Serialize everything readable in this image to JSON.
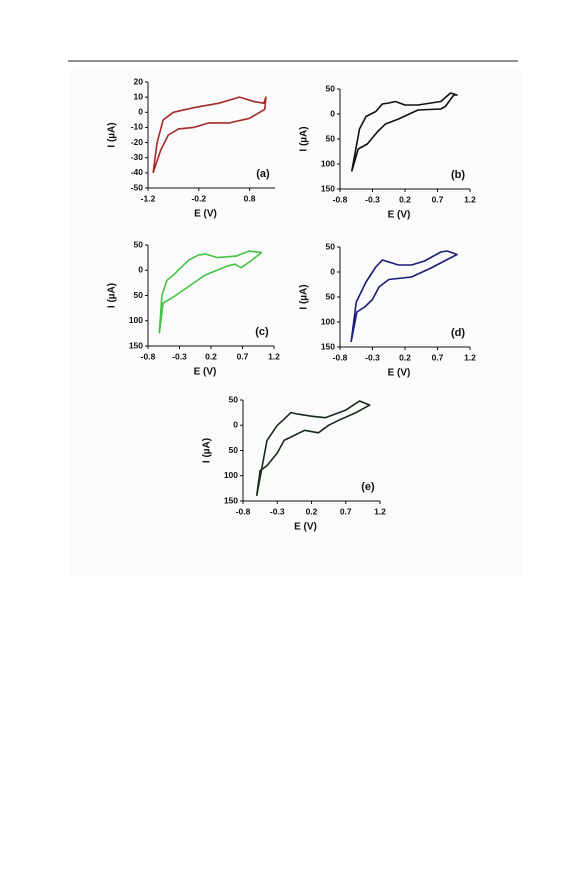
{
  "chart_data": [
    {
      "type": "line",
      "label": "(a)",
      "xlabel": "E (V)",
      "ylabel": "I (µA)",
      "xlim": [
        -1.2,
        1.3
      ],
      "ylim": [
        -50,
        20
      ],
      "xticks": [
        -1.2,
        -0.2,
        0.8
      ],
      "yticks": [
        20,
        10,
        0,
        -10,
        -20,
        -30,
        -40,
        -50
      ],
      "series": [
        {
          "color": "#a52a2a",
          "x": [
            -1.1,
            -1.02,
            -0.9,
            -0.7,
            -0.3,
            0.2,
            0.6,
            0.9,
            1.08,
            1.12,
            1.1,
            0.8,
            0.4,
            0.0,
            -0.3,
            -0.6,
            -0.8,
            -0.95,
            -1.1
          ],
          "values": [
            -40,
            -20,
            -5,
            0,
            3,
            6,
            10,
            7,
            6,
            10,
            2,
            -4,
            -7,
            -7,
            -10,
            -11,
            -15,
            -25,
            -40
          ]
        }
      ]
    },
    {
      "type": "line",
      "label": "(b)",
      "xlabel": "E (V)",
      "ylabel": "I (µA)",
      "xlim": [
        -0.8,
        1.2
      ],
      "ylim": [
        -150,
        50
      ],
      "xticks": [
        -0.8,
        -0.3,
        0.2,
        0.7,
        1.2
      ],
      "yticks": [
        50,
        0,
        {
          "value": -50,
          "label": "50"
        },
        {
          "value": -100,
          "label": "100"
        },
        {
          "value": -150,
          "label": "150"
        }
      ],
      "series": [
        {
          "color": "#111111",
          "x": [
            -0.62,
            -0.52,
            -0.38,
            -0.22,
            -0.1,
            0.1,
            0.4,
            0.75,
            0.82,
            0.95,
            1.0,
            0.9,
            0.75,
            0.4,
            0.2,
            0.05,
            -0.05,
            -0.15,
            -0.25,
            -0.4,
            -0.5,
            -0.62
          ],
          "values": [
            -115,
            -70,
            -60,
            -35,
            -20,
            -10,
            8,
            10,
            15,
            38,
            38,
            42,
            25,
            18,
            18,
            25,
            22,
            20,
            5,
            -5,
            -30,
            -115
          ]
        }
      ]
    },
    {
      "type": "line",
      "label": "(c)",
      "xlabel": "E (V)",
      "ylabel": "I (µA)",
      "xlim": [
        -0.8,
        1.2
      ],
      "ylim": [
        -150,
        50
      ],
      "xticks": [
        -0.8,
        -0.3,
        0.2,
        0.7,
        1.2
      ],
      "yticks": [
        50,
        0,
        {
          "value": -50,
          "label": "50"
        },
        {
          "value": -100,
          "label": "100"
        },
        {
          "value": -150,
          "label": "150"
        }
      ],
      "series": [
        {
          "color": "#44c444",
          "x": [
            -0.62,
            -0.56,
            -0.42,
            -0.22,
            0.1,
            0.45,
            0.58,
            0.68,
            0.85,
            1.0,
            0.8,
            0.6,
            0.3,
            0.12,
            0.0,
            -0.15,
            -0.28,
            -0.4,
            -0.5,
            -0.58,
            -0.62
          ],
          "values": [
            -125,
            -65,
            -55,
            -38,
            -10,
            8,
            12,
            5,
            20,
            35,
            38,
            28,
            25,
            32,
            30,
            20,
            5,
            -10,
            -20,
            -50,
            -125
          ]
        }
      ]
    },
    {
      "type": "line",
      "label": "(d)",
      "xlabel": "E (V)",
      "ylabel": "I (µA)",
      "xlim": [
        -0.8,
        1.2
      ],
      "ylim": [
        -150,
        50
      ],
      "xticks": [
        -0.8,
        -0.3,
        0.2,
        0.7,
        1.2
      ],
      "yticks": [
        50,
        0,
        {
          "value": -50,
          "label": "50"
        },
        {
          "value": -100,
          "label": "100"
        },
        {
          "value": -150,
          "label": "150"
        }
      ],
      "series": [
        {
          "color": "#1c1c7a",
          "x": [
            -0.63,
            -0.54,
            -0.42,
            -0.3,
            -0.2,
            -0.05,
            0.3,
            0.6,
            0.85,
            1.0,
            0.85,
            0.75,
            0.5,
            0.3,
            0.1,
            -0.05,
            -0.15,
            -0.25,
            -0.4,
            -0.55,
            -0.63
          ],
          "values": [
            -140,
            -80,
            -70,
            -55,
            -30,
            -15,
            -10,
            8,
            25,
            35,
            42,
            40,
            22,
            14,
            14,
            20,
            24,
            10,
            -20,
            -60,
            -140
          ]
        }
      ]
    },
    {
      "type": "line",
      "label": "(e)",
      "xlabel": "E (V)",
      "ylabel": "I (µA)",
      "xlim": [
        -0.8,
        1.2
      ],
      "ylim": [
        -150,
        50
      ],
      "xticks": [
        -0.8,
        -0.3,
        0.2,
        0.7,
        1.2
      ],
      "yticks": [
        50,
        0,
        {
          "value": -50,
          "label": "50"
        },
        {
          "value": -100,
          "label": "100"
        },
        {
          "value": -150,
          "label": "150"
        }
      ],
      "series": [
        {
          "color": "#1a2a1a",
          "x": [
            -0.6,
            -0.55,
            -0.45,
            -0.3,
            -0.2,
            0.1,
            0.3,
            0.45,
            0.6,
            0.85,
            1.05,
            0.9,
            0.7,
            0.4,
            0.2,
            0.0,
            -0.1,
            -0.2,
            -0.3,
            -0.45,
            -0.6
          ],
          "values": [
            -140,
            -90,
            -80,
            -55,
            -30,
            -10,
            -15,
            0,
            10,
            25,
            40,
            48,
            30,
            15,
            18,
            22,
            25,
            12,
            0,
            -30,
            -140
          ]
        }
      ]
    }
  ]
}
